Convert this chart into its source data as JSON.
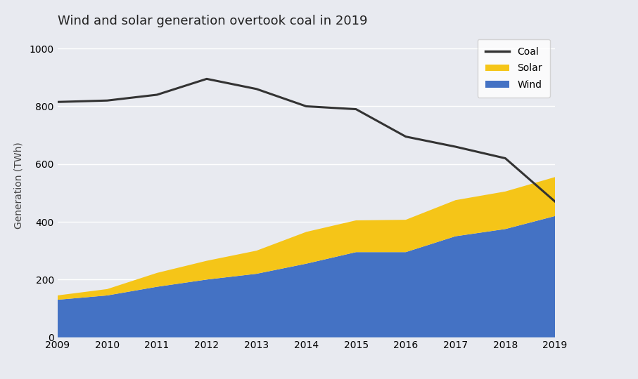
{
  "title": "Wind and solar generation overtook coal in 2019",
  "ylabel": "Generation (TWh)",
  "years": [
    2009,
    2010,
    2011,
    2012,
    2013,
    2014,
    2015,
    2016,
    2017,
    2018,
    2019
  ],
  "coal": [
    815,
    820,
    840,
    895,
    860,
    800,
    790,
    695,
    660,
    620,
    470
  ],
  "solar": [
    15,
    22,
    48,
    65,
    80,
    110,
    110,
    112,
    125,
    130,
    135
  ],
  "wind": [
    130,
    145,
    175,
    200,
    220,
    255,
    295,
    295,
    350,
    375,
    420
  ],
  "coal_color": "#333333",
  "solar_color": "#f5c518",
  "wind_color": "#4472c4",
  "bg_color": "#e8eaf0",
  "fig_bg_color": "#e8eaf0",
  "ylim": [
    0,
    1050
  ],
  "yticks": [
    0,
    200,
    400,
    600,
    800,
    1000
  ],
  "grid_color": "#ffffff",
  "legend_bg": "#ffffff"
}
